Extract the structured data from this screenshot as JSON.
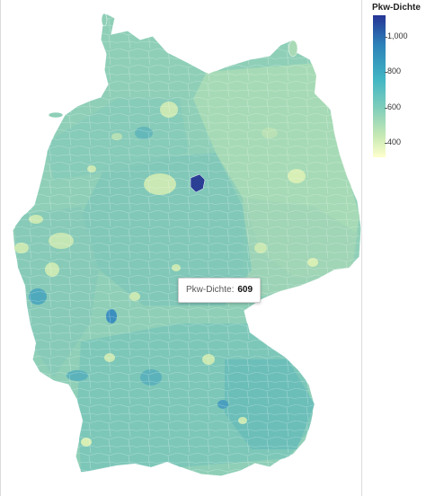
{
  "legend": {
    "title": "Pkw-Dichte",
    "ticks": [
      "1,000",
      "800",
      "600",
      "400"
    ],
    "colors": [
      "#253494",
      "#2c7fb8",
      "#41b6c4",
      "#7fcdbb",
      "#c7e9b4",
      "#ffffcc"
    ]
  },
  "tooltip": {
    "label": "Pkw-Dichte:",
    "value": "609"
  },
  "map": {
    "fill_base": "#8fcfb8",
    "fill_light": "#c9e8b3",
    "fill_mid": "#6ec0b9",
    "fill_dark": "#2b3f95",
    "border_color": "#ffffff"
  }
}
